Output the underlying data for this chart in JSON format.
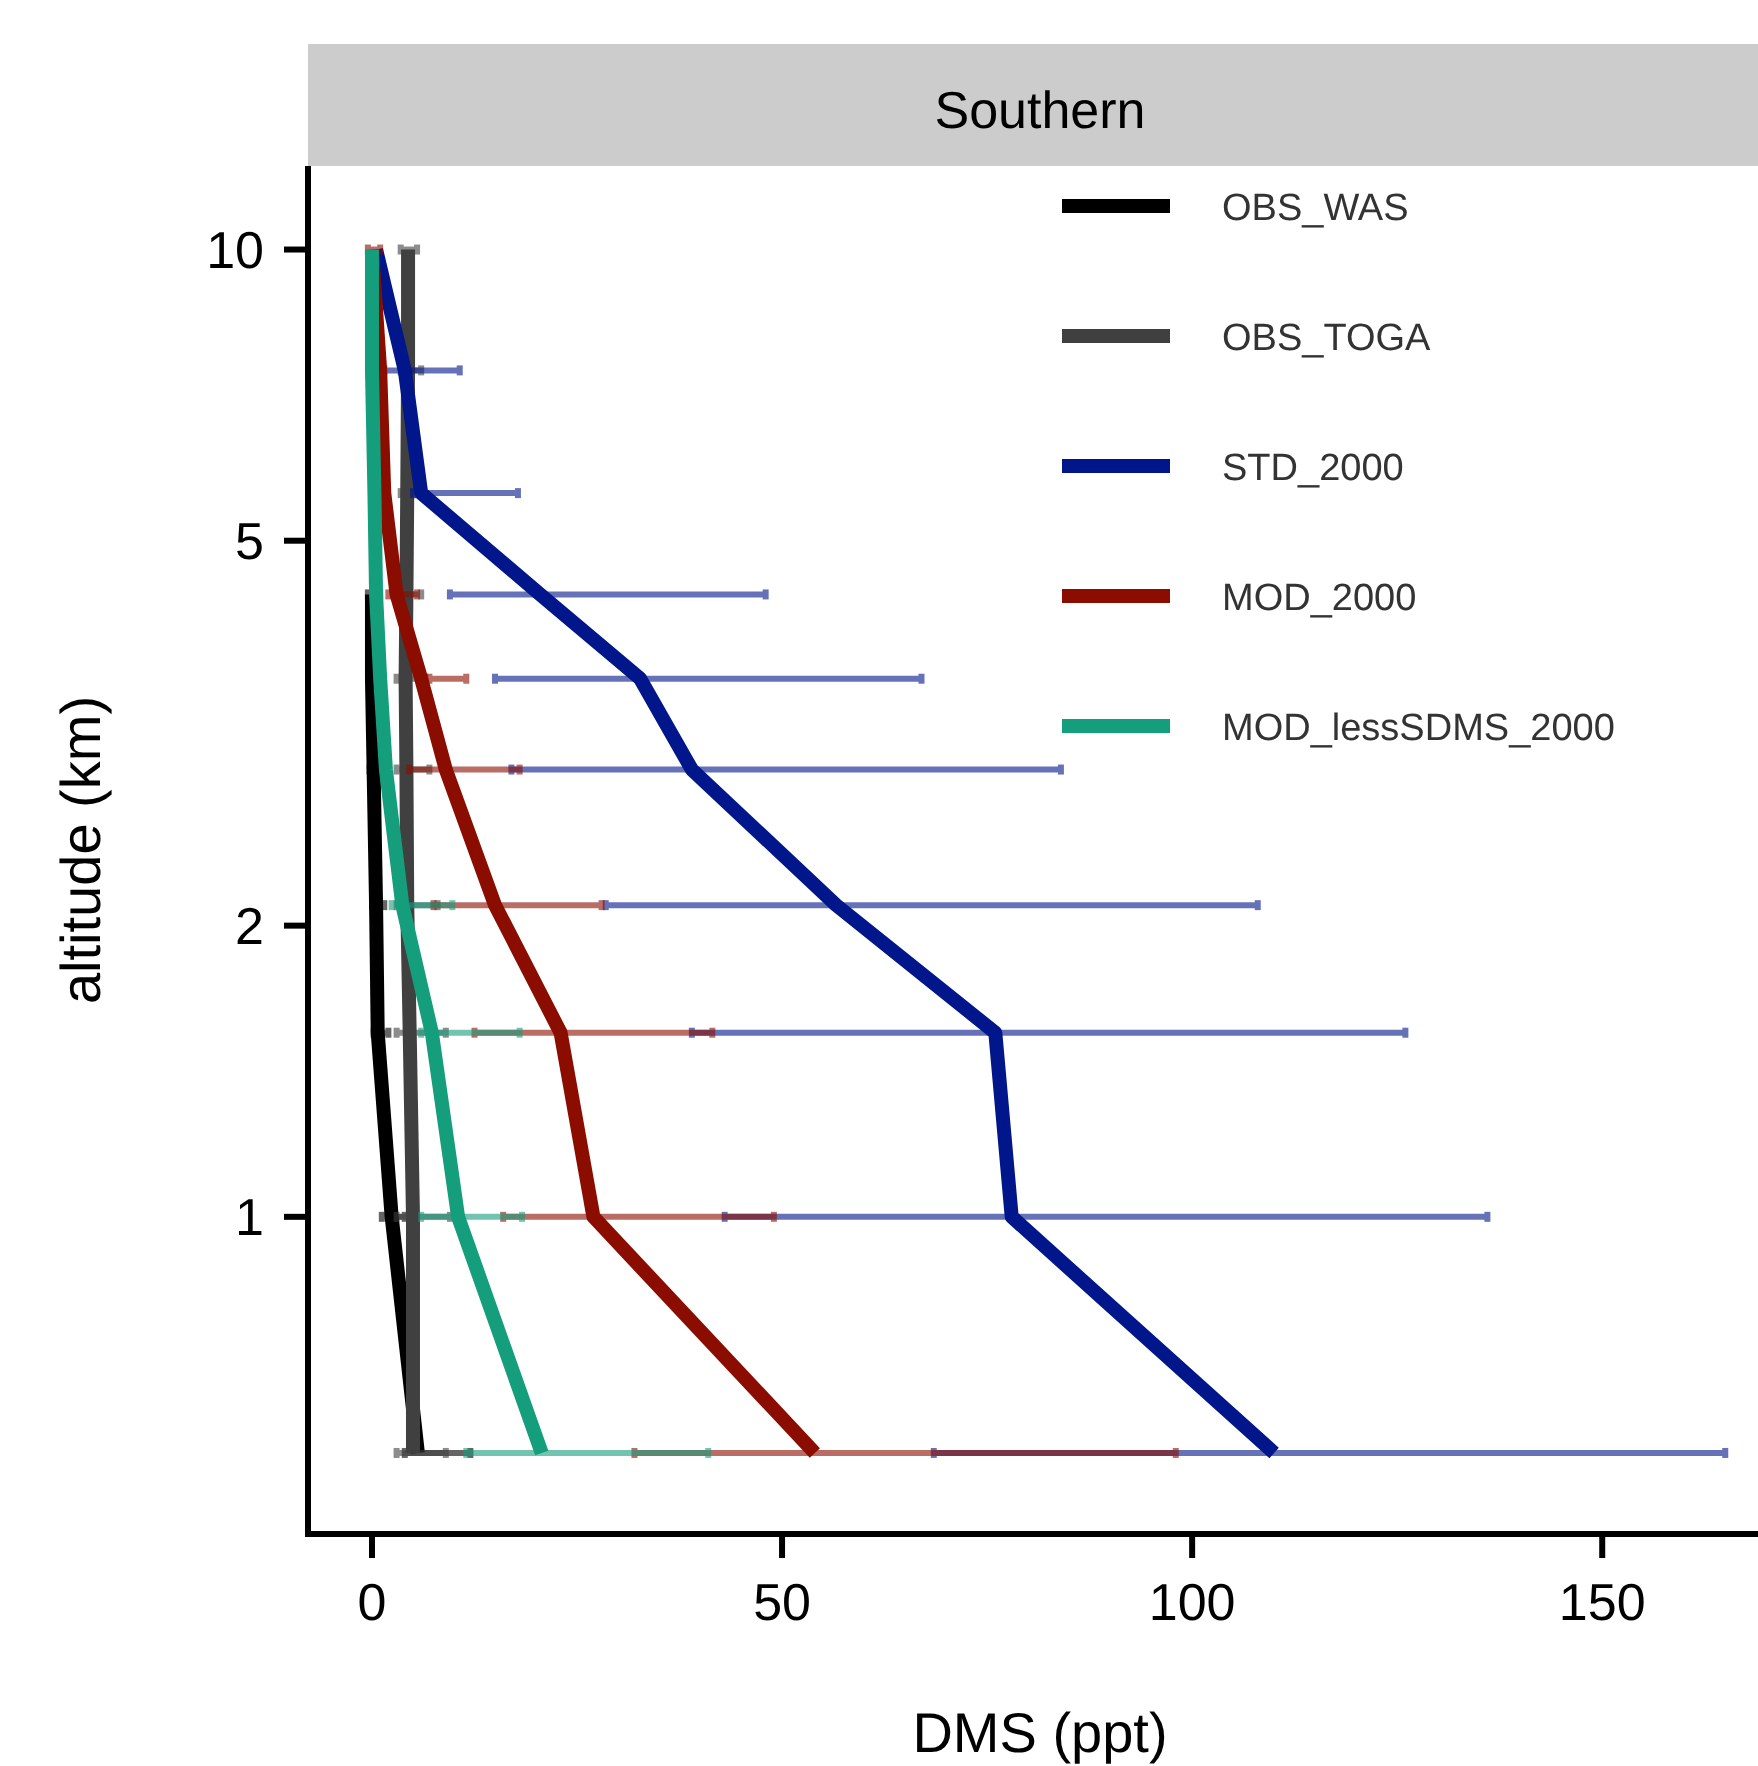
{
  "chart_data": {
    "type": "line",
    "title": "Southern",
    "xlabel": "DMS (ppt)",
    "ylabel": "altitude (km)",
    "log": "y",
    "grid": false,
    "legend": "top right",
    "line_style": "solid",
    "marker": "none",
    "xlim": [
      -7.8,
      170.7
    ],
    "xticks": [
      0,
      50,
      100,
      150
    ],
    "ylim": [
      0.47,
      12.2
    ],
    "yticks": [
      10,
      5,
      2,
      1
    ],
    "series": [
      {
        "name": "OBS_WAS",
        "color": "#000000",
        "x": [
          0,
          0,
          0.2,
          0.5,
          0.7,
          2.4,
          5.6
        ],
        "values": [
          4.4,
          3.6,
          2.9,
          2.1,
          1.55,
          1.0,
          0.57
        ],
        "xerrors": [
          [
            -0.5,
            1
          ],
          null,
          [
            -0.3,
            1.2
          ],
          [
            0,
            1.5
          ],
          [
            0.2,
            2
          ],
          [
            1.2,
            4
          ],
          [
            4,
            12
          ]
        ]
      },
      {
        "name": "OBS_TOGA",
        "color": "#404040",
        "x": [
          4.4,
          4.4,
          4.3,
          4.2,
          4.1,
          4.2,
          4.3,
          4.6,
          5,
          5
        ],
        "values": [
          10,
          7.5,
          5.6,
          4.4,
          3.6,
          2.9,
          2.1,
          1.55,
          1.0,
          0.57
        ],
        "xerrors": [
          [
            3.5,
            5.5
          ],
          [
            3.5,
            6
          ],
          [
            3.5,
            5.5
          ],
          [
            3.3,
            6
          ],
          [
            3,
            6.5
          ],
          [
            3,
            7
          ],
          [
            3,
            8
          ],
          [
            3,
            9
          ],
          [
            3,
            9.5
          ],
          [
            3,
            9
          ]
        ]
      },
      {
        "name": "STD_2000",
        "color": "#00168a",
        "x": [
          0.5,
          4,
          6,
          20.5,
          32.7,
          39,
          56.6,
          76,
          78,
          110
        ],
        "values": [
          10,
          7.5,
          5.6,
          4.4,
          3.6,
          2.9,
          2.1,
          1.55,
          1.0,
          0.57
        ],
        "xerrors": [
          null,
          [
            1.5,
            10.7
          ],
          [
            5,
            17.8
          ],
          [
            9.5,
            48
          ],
          [
            15,
            67
          ],
          [
            17,
            84
          ],
          [
            28.5,
            108
          ],
          [
            39,
            126
          ],
          [
            43,
            136
          ],
          [
            68.5,
            165
          ]
        ]
      },
      {
        "name": "MOD_2000",
        "color": "#8b0d00",
        "x": [
          0,
          1,
          1.5,
          3,
          6,
          9,
          15,
          23,
          27,
          54
        ],
        "values": [
          10,
          7.5,
          5.6,
          4.4,
          3.6,
          2.9,
          2.1,
          1.55,
          1.0,
          0.57
        ],
        "xerrors": [
          [
            -0.5,
            1
          ],
          null,
          null,
          [
            2,
            5.5
          ],
          [
            7,
            11.5
          ],
          [
            4.5,
            18
          ],
          [
            7.5,
            28
          ],
          [
            12.5,
            41.5
          ],
          [
            16,
            49
          ],
          [
            32,
            98
          ]
        ]
      },
      {
        "name": "MOD_lessSDMS_2000",
        "color": "#159e7c",
        "x": [
          0,
          0,
          0.3,
          0.5,
          1,
          1.7,
          3.7,
          7.3,
          10.5,
          20.7
        ],
        "values": [
          10,
          7.5,
          5.6,
          4.4,
          3.6,
          2.9,
          2.1,
          1.55,
          1.0,
          0.57
        ],
        "xerrors": [
          null,
          null,
          null,
          null,
          null,
          null,
          [
            2.4,
            9.8
          ],
          [
            6,
            18
          ],
          [
            6,
            18.3
          ],
          [
            11.5,
            41
          ]
        ]
      }
    ]
  }
}
